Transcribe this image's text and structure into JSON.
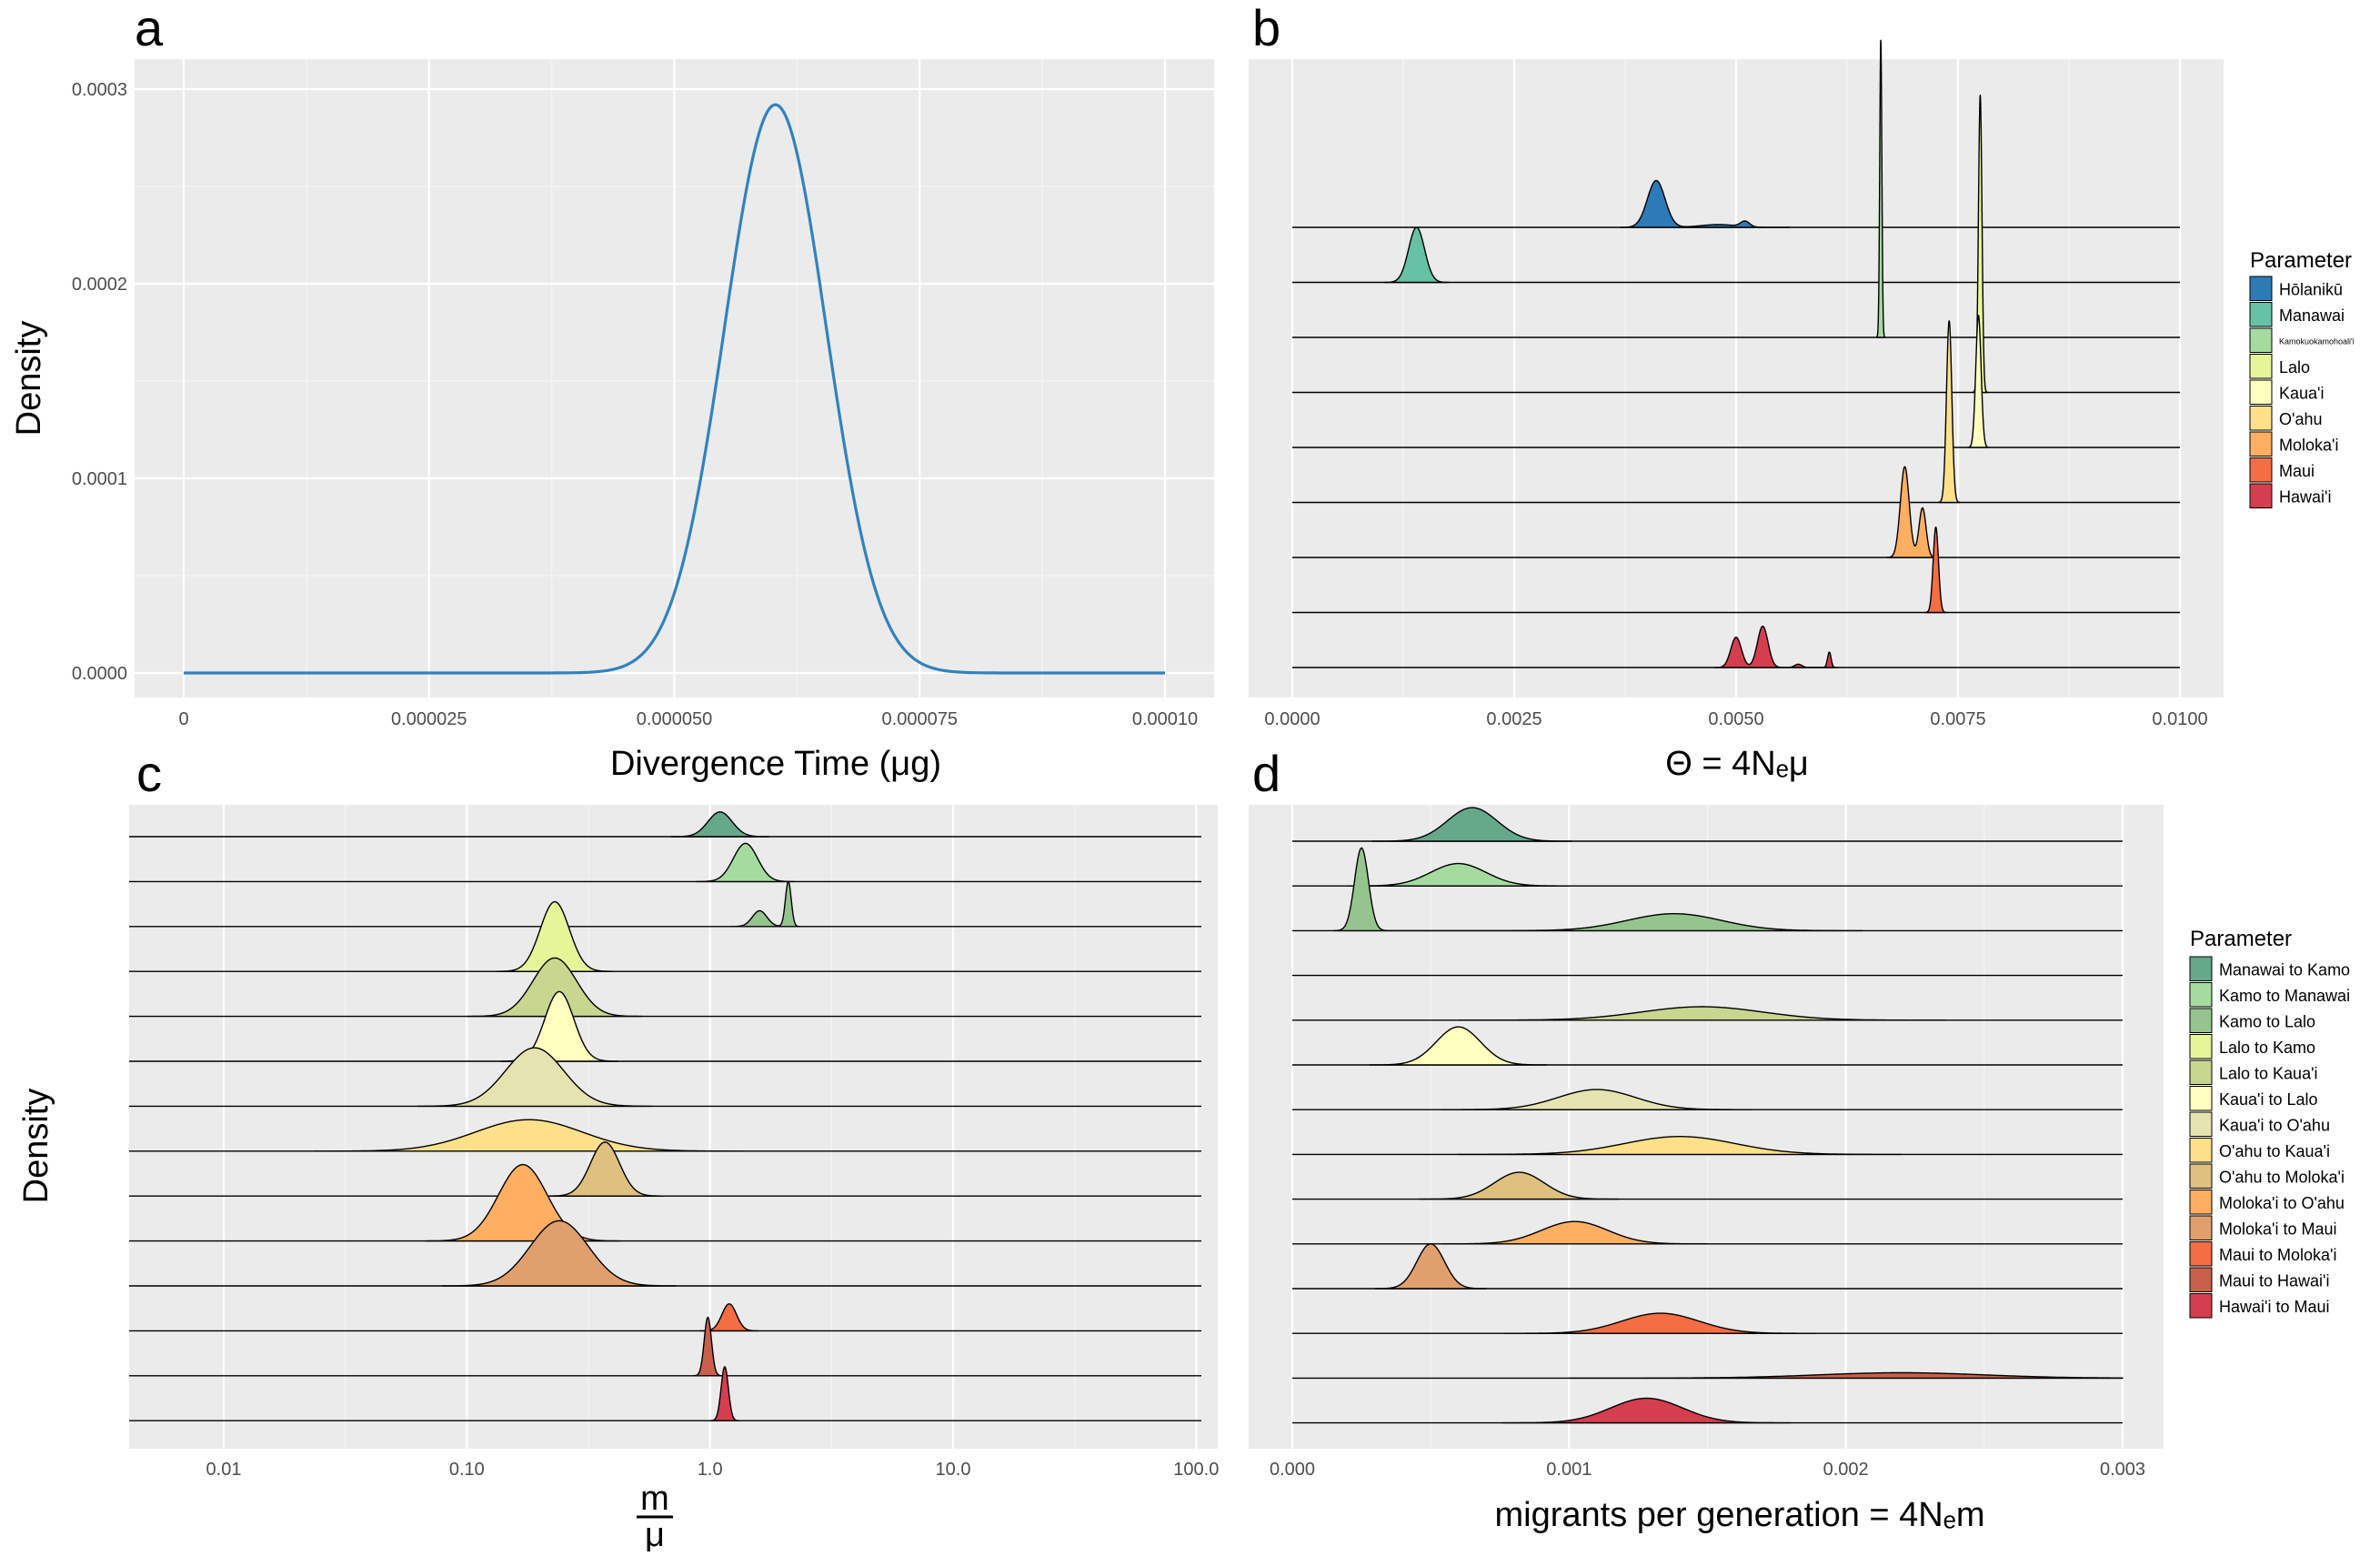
{
  "chart_data": [
    {
      "panel": "a",
      "type": "line",
      "xlabel": "Divergence Time (μg)",
      "ylabel": "Density",
      "xticks": [
        "0",
        "0.000025",
        "0.000050",
        "0.000075",
        "0.00010"
      ],
      "yticks": [
        "0.0000",
        "0.0001",
        "0.0002",
        "0.0003"
      ],
      "xlim": [
        0,
        0.0001
      ],
      "ylim": [
        0,
        0.0003
      ],
      "series": [
        {
          "distribution": "normal",
          "mean": 6.03e-05,
          "sd": 5.2e-06,
          "peak": 0.000292,
          "color": "#3182bd"
        }
      ]
    },
    {
      "panel": "b",
      "type": "ridgeline",
      "xlabel": "Θ = 4Nₑμ",
      "xticks": [
        "0.0000",
        "0.0025",
        "0.0050",
        "0.0075",
        "0.0100"
      ],
      "xlim": [
        0,
        0.01
      ],
      "legend_title": "Parameter",
      "legend_position": "right",
      "series": [
        {
          "name": "Hōlanikū",
          "color": "#2c7bb6",
          "peaks": [
            [
              0.0041,
              0.0001,
              0.85
            ],
            [
              0.0048,
              0.0002,
              0.05
            ],
            [
              0.0051,
              5e-05,
              0.1
            ]
          ]
        },
        {
          "name": "Manawai",
          "color": "#66c2a5",
          "peaks": [
            [
              0.0014,
              9e-05,
              1.0
            ]
          ]
        },
        {
          "name": "Kamokuokamohoali'i",
          "color": "#a6dba0",
          "peaks": [
            [
              0.00663,
              1.2e-05,
              5.4
            ]
          ]
        },
        {
          "name": "Lalo",
          "color": "#e6f598",
          "peaks": [
            [
              0.00775,
              2e-05,
              5.4
            ]
          ]
        },
        {
          "name": "Kaua'i",
          "color": "#ffffbf",
          "peaks": [
            [
              0.00773,
              3e-05,
              2.4
            ]
          ]
        },
        {
          "name": "O'ahu",
          "color": "#fee08b",
          "peaks": [
            [
              0.0074,
              3e-05,
              3.3
            ]
          ]
        },
        {
          "name": "Moloka'i",
          "color": "#fdae61",
          "peaks": [
            [
              0.0069,
              5e-05,
              1.65
            ],
            [
              0.0071,
              4e-05,
              0.9
            ]
          ]
        },
        {
          "name": "Maui",
          "color": "#f46d43",
          "peaks": [
            [
              0.00725,
              3e-05,
              1.55
            ]
          ]
        },
        {
          "name": "Hawai'i",
          "color": "#d53e4f",
          "peaks": [
            [
              0.005,
              6e-05,
              0.55
            ],
            [
              0.0053,
              6e-05,
              0.75
            ],
            [
              0.0057,
              4e-05,
              0.06
            ],
            [
              0.00605,
              2e-05,
              0.28
            ]
          ]
        }
      ]
    },
    {
      "panel": "c",
      "type": "ridgeline",
      "xlabel_num": "m",
      "xlabel_den": "μ",
      "ylabel": "Density",
      "xscale": "log",
      "xticks": [
        "0.01",
        "0.10",
        "1.0",
        "10.0",
        "100.0"
      ],
      "xlim": [
        0.0065,
        105
      ],
      "series": [
        {
          "name": "Manawai to Kamo",
          "color": "#66a88a",
          "peaks": [
            [
              1.1,
              0.05,
              0.55
            ]
          ]
        },
        {
          "name": "Kamo to Manawai",
          "color": "#a6dba0",
          "peaks": [
            [
              1.4,
              0.05,
              0.85
            ]
          ]
        },
        {
          "name": "Kamo to Lalo",
          "color": "#96c48f",
          "peaks": [
            [
              1.6,
              0.03,
              0.35
            ],
            [
              2.1,
              0.012,
              1.0
            ]
          ]
        },
        {
          "name": "Lalo to Kamo",
          "color": "#e6f598",
          "peaks": [
            [
              0.23,
              0.06,
              1.55
            ]
          ]
        },
        {
          "name": "Lalo to Kaua'i",
          "color": "#c8d690",
          "peaks": [
            [
              0.23,
              0.09,
              1.3
            ]
          ]
        },
        {
          "name": "Kaua'i to Lalo",
          "color": "#ffffbf",
          "peaks": [
            [
              0.24,
              0.06,
              1.55
            ]
          ]
        },
        {
          "name": "Kaua'i to O'ahu",
          "color": "#e5e4b0",
          "peaks": [
            [
              0.19,
              0.12,
              1.3
            ]
          ]
        },
        {
          "name": "O'ahu to Kaua'i",
          "color": "#fee08b",
          "peaks": [
            [
              0.18,
              0.22,
              0.7
            ]
          ]
        },
        {
          "name": "O'ahu to Moloka'i",
          "color": "#dfc07f",
          "peaks": [
            [
              0.37,
              0.06,
              1.2
            ]
          ]
        },
        {
          "name": "Moloka'i to O'ahu",
          "color": "#fdae61",
          "peaks": [
            [
              0.17,
              0.1,
              1.7
            ]
          ]
        },
        {
          "name": "Moloka'i to Maui",
          "color": "#e0a06e",
          "peaks": [
            [
              0.24,
              0.12,
              1.45
            ]
          ]
        },
        {
          "name": "Maui to Moloka'i",
          "color": "#f46d43",
          "peaks": [
            [
              1.2,
              0.03,
              0.6
            ]
          ]
        },
        {
          "name": "Maui to Hawai'i",
          "color": "#c8604a",
          "peaks": [
            [
              0.98,
              0.015,
              1.3
            ]
          ]
        },
        {
          "name": "Hawai'i to Maui",
          "color": "#d53e4f",
          "peaks": [
            [
              1.15,
              0.015,
              1.2
            ]
          ]
        }
      ]
    },
    {
      "panel": "d",
      "type": "ridgeline",
      "xlabel": "migrants per generation = 4Nₑm",
      "xticks": [
        "0.000",
        "0.001",
        "0.002",
        "0.003"
      ],
      "xlim": [
        0,
        0.003
      ],
      "legend_title": "Parameter",
      "legend_position": "right",
      "series": [
        {
          "name": "Manawai to Kamo",
          "color": "#66a88a",
          "peaks": [
            [
              0.00065,
              9e-05,
              0.75
            ]
          ]
        },
        {
          "name": "Kamo to Manawai",
          "color": "#a6dba0",
          "peaks": [
            [
              0.0006,
              0.0001,
              0.5
            ]
          ]
        },
        {
          "name": "Kamo to Lalo",
          "color": "#96c48f",
          "peaks": [
            [
              0.00025,
              2.5e-05,
              1.85
            ],
            [
              0.00138,
              0.00017,
              0.38
            ]
          ]
        },
        {
          "name": "Lalo to Kamo",
          "color": "#e6f598",
          "peaks": []
        },
        {
          "name": "Lalo to Kaua'i",
          "color": "#c8d690",
          "peaks": [
            [
              0.00148,
              0.00022,
              0.3
            ]
          ]
        },
        {
          "name": "Kaua'i to Lalo",
          "color": "#ffffbf",
          "peaks": [
            [
              0.0006,
              8e-05,
              0.85
            ]
          ]
        },
        {
          "name": "Kaua'i to O'ahu",
          "color": "#e5e4b0",
          "peaks": [
            [
              0.0011,
              0.00014,
              0.45
            ]
          ]
        },
        {
          "name": "O'ahu to Kaua'i",
          "color": "#fee08b",
          "peaks": [
            [
              0.0014,
              0.0002,
              0.4
            ]
          ]
        },
        {
          "name": "O'ahu to Moloka'i",
          "color": "#dfc07f",
          "peaks": [
            [
              0.00082,
              9e-05,
              0.6
            ]
          ]
        },
        {
          "name": "Moloka'i to O'ahu",
          "color": "#fdae61",
          "peaks": [
            [
              0.00102,
              0.00012,
              0.5
            ]
          ]
        },
        {
          "name": "Moloka'i to Maui",
          "color": "#e0a06e",
          "peaks": [
            [
              0.0005,
              5e-05,
              1.0
            ]
          ]
        },
        {
          "name": "Maui to Moloka'i",
          "color": "#f46d43",
          "peaks": [
            [
              0.00133,
              0.00014,
              0.45
            ]
          ]
        },
        {
          "name": "Maui to Hawai'i",
          "color": "#c8604a",
          "peaks": [
            [
              0.0022,
              0.0003,
              0.12
            ]
          ]
        },
        {
          "name": "Hawai'i to Maui",
          "color": "#d53e4f",
          "peaks": [
            [
              0.00128,
              0.00013,
              0.55
            ]
          ]
        }
      ]
    }
  ]
}
